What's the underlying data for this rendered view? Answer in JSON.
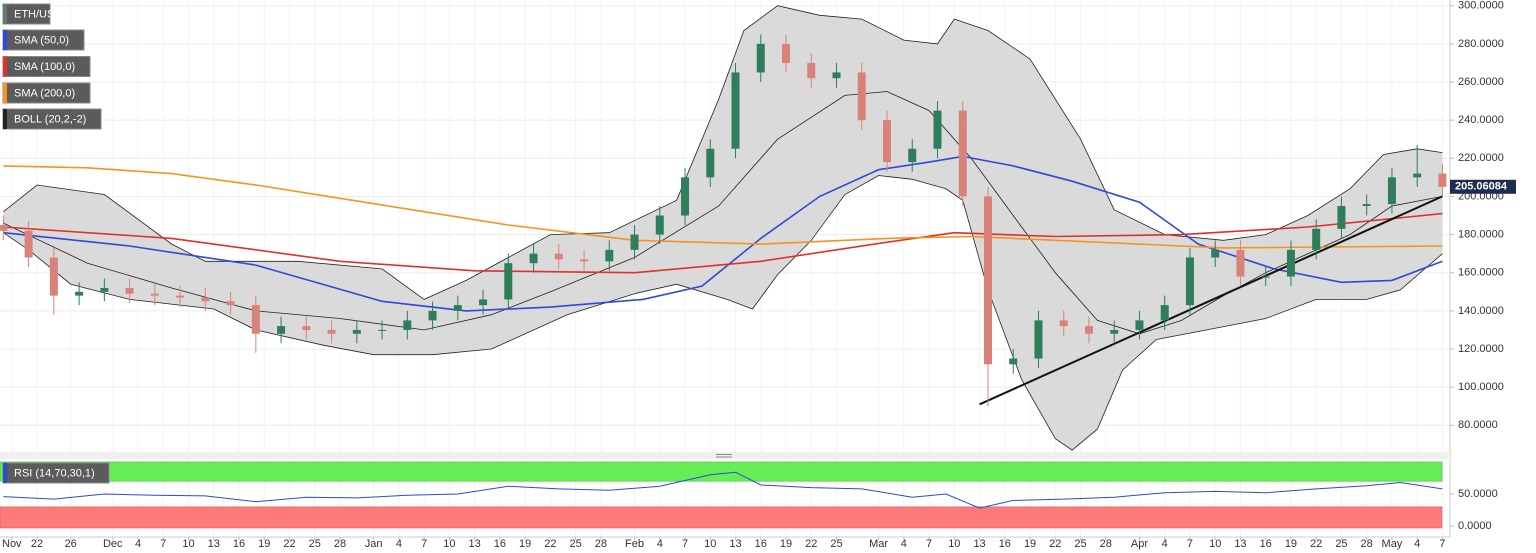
{
  "chart_data": [
    {
      "type": "candlestick",
      "name": "ETH/USD",
      "x": [
        0,
        3,
        6,
        9,
        12,
        15,
        18,
        21,
        24,
        27,
        30,
        33,
        36,
        39,
        42,
        45,
        48,
        51,
        54,
        57,
        60,
        63,
        66,
        69,
        72,
        75,
        78,
        81,
        84,
        87,
        90,
        93,
        96,
        99,
        102,
        105,
        108,
        111,
        114,
        117,
        120,
        123,
        126,
        129,
        132,
        135,
        138,
        141,
        144,
        147,
        150,
        153,
        156,
        159,
        162,
        165,
        168,
        171
      ],
      "open": [
        185,
        182,
        168,
        148,
        150,
        152,
        149,
        148,
        147,
        145,
        143,
        128,
        132,
        130,
        128,
        130,
        130,
        135,
        140,
        143,
        146,
        165,
        170,
        167,
        166,
        172,
        180,
        190,
        210,
        225,
        265,
        280,
        270,
        262,
        265,
        240,
        218,
        225,
        245,
        200,
        112,
        115,
        135,
        132,
        128,
        130,
        135,
        143,
        168,
        172,
        158,
        158,
        172,
        183,
        195,
        196,
        210,
        212
      ],
      "high": [
        190,
        187,
        173,
        155,
        157,
        157,
        154,
        153,
        152,
        150,
        148,
        137,
        137,
        135,
        135,
        135,
        140,
        145,
        148,
        151,
        170,
        175,
        175,
        172,
        177,
        185,
        195,
        215,
        230,
        270,
        285,
        285,
        275,
        270,
        270,
        245,
        230,
        250,
        250,
        205,
        120,
        140,
        140,
        137,
        135,
        140,
        148,
        173,
        177,
        177,
        163,
        177,
        188,
        200,
        201,
        215,
        227,
        217
      ],
      "low": [
        177,
        163,
        138,
        143,
        145,
        144,
        143,
        142,
        140,
        138,
        118,
        123,
        125,
        123,
        123,
        125,
        125,
        130,
        135,
        138,
        141,
        160,
        162,
        161,
        161,
        167,
        175,
        185,
        205,
        220,
        260,
        265,
        257,
        257,
        235,
        213,
        213,
        220,
        195,
        90,
        107,
        110,
        127,
        123,
        123,
        125,
        130,
        138,
        163,
        153,
        153,
        153,
        167,
        178,
        190,
        191,
        205,
        200
      ],
      "close": [
        182,
        168,
        148,
        150,
        152,
        149,
        148,
        147,
        145,
        143,
        128,
        132,
        130,
        128,
        130,
        130,
        135,
        140,
        143,
        146,
        165,
        170,
        167,
        166,
        172,
        180,
        190,
        210,
        225,
        265,
        280,
        270,
        262,
        265,
        240,
        218,
        225,
        245,
        200,
        112,
        115,
        135,
        132,
        128,
        130,
        135,
        143,
        168,
        172,
        158,
        158,
        172,
        183,
        195,
        196,
        210,
        212,
        205
      ],
      "up_color": "#2e7d5b",
      "down_color": "#d9827a",
      "color": "#5f7f6c",
      "xlim": [
        -0.4,
        171.9
      ],
      "ylim": [
        66,
        303
      ],
      "yticks": [
        {
          "value": 80,
          "label": "80.0000"
        },
        {
          "value": 100,
          "label": "100.0000"
        },
        {
          "value": 120,
          "label": "120.0000"
        },
        {
          "value": 140,
          "label": "140.0000"
        },
        {
          "value": 160,
          "label": "160.0000"
        },
        {
          "value": 180,
          "label": "180.0000"
        },
        {
          "value": 200,
          "label": "200.0000"
        },
        {
          "value": 220,
          "label": "220.0000"
        },
        {
          "value": 240,
          "label": "240.0000"
        },
        {
          "value": 260,
          "label": "260.0000"
        },
        {
          "value": 280,
          "label": "280.0000"
        },
        {
          "value": 300,
          "label": "300.0000"
        }
      ],
      "xticks": [
        {
          "value": 1,
          "label": "Nov"
        },
        {
          "value": 4,
          "label": "22"
        },
        {
          "value": 8,
          "label": "26"
        },
        {
          "value": 13,
          "label": "Dec"
        },
        {
          "value": 16,
          "label": "4"
        },
        {
          "value": 19,
          "label": "7"
        },
        {
          "value": 22,
          "label": "10"
        },
        {
          "value": 25,
          "label": "13"
        },
        {
          "value": 28,
          "label": "16"
        },
        {
          "value": 31,
          "label": "19"
        },
        {
          "value": 34,
          "label": "22"
        },
        {
          "value": 37,
          "label": "25"
        },
        {
          "value": 40,
          "label": "28"
        },
        {
          "value": 44,
          "label": "Jan"
        },
        {
          "value": 47,
          "label": "4"
        },
        {
          "value": 50,
          "label": "7"
        },
        {
          "value": 53,
          "label": "10"
        },
        {
          "value": 56,
          "label": "13"
        },
        {
          "value": 59,
          "label": "16"
        },
        {
          "value": 62,
          "label": "19"
        },
        {
          "value": 65,
          "label": "22"
        },
        {
          "value": 68,
          "label": "25"
        },
        {
          "value": 71,
          "label": "28"
        },
        {
          "value": 75,
          "label": "Feb"
        },
        {
          "value": 78,
          "label": "4"
        },
        {
          "value": 81,
          "label": "7"
        },
        {
          "value": 84,
          "label": "10"
        },
        {
          "value": 87,
          "label": "13"
        },
        {
          "value": 90,
          "label": "16"
        },
        {
          "value": 93,
          "label": "19"
        },
        {
          "value": 96,
          "label": "22"
        },
        {
          "value": 99,
          "label": "25"
        },
        {
          "value": 104,
          "label": "Mar"
        },
        {
          "value": 107,
          "label": "4"
        },
        {
          "value": 110,
          "label": "7"
        },
        {
          "value": 113,
          "label": "10"
        },
        {
          "value": 116,
          "label": "13"
        },
        {
          "value": 119,
          "label": "16"
        },
        {
          "value": 122,
          "label": "19"
        },
        {
          "value": 125,
          "label": "22"
        },
        {
          "value": 128,
          "label": "25"
        },
        {
          "value": 131,
          "label": "28"
        },
        {
          "value": 135,
          "label": "Apr"
        },
        {
          "value": 138,
          "label": "4"
        },
        {
          "value": 141,
          "label": "7"
        },
        {
          "value": 144,
          "label": "10"
        },
        {
          "value": 147,
          "label": "13"
        },
        {
          "value": 150,
          "label": "16"
        },
        {
          "value": 153,
          "label": "19"
        },
        {
          "value": 156,
          "label": "22"
        },
        {
          "value": 159,
          "label": "25"
        },
        {
          "value": 162,
          "label": "28"
        },
        {
          "value": 165,
          "label": "May"
        },
        {
          "value": 168,
          "label": "4"
        },
        {
          "value": 171,
          "label": "7"
        }
      ],
      "grid": true,
      "series": [
        {
          "name": "SMA (50,0)",
          "color": "#2f48d8",
          "x": [
            0,
            15,
            30,
            45,
            55,
            65,
            76,
            83,
            90,
            97,
            104,
            110,
            114,
            120,
            127,
            135,
            142,
            151,
            159,
            165,
            171
          ],
          "values": [
            181,
            174,
            164,
            145,
            140,
            142,
            146,
            153,
            178,
            200,
            214,
            218,
            221,
            216,
            208,
            197,
            175,
            162,
            155,
            156,
            166
          ]
        },
        {
          "name": "SMA (100,0)",
          "color": "#e0302a",
          "x": [
            0,
            20,
            40,
            56,
            75,
            90,
            105,
            113,
            125,
            140,
            155,
            171
          ],
          "values": [
            184,
            178,
            166,
            161,
            160,
            166,
            176,
            181,
            179,
            180,
            184,
            191
          ]
        },
        {
          "name": "SMA (200,0)",
          "color": "#f7931e",
          "x": [
            0,
            10,
            20,
            30,
            40,
            50,
            60,
            75,
            90,
            105,
            115,
            130,
            145,
            171
          ],
          "values": [
            216,
            215,
            212,
            206,
            199,
            192,
            185,
            177,
            175,
            178,
            179,
            176,
            173,
            174
          ]
        }
      ],
      "bollinger": {
        "name": "BOLL (20,2,-2)",
        "color": "#222222",
        "upper": {
          "x": [
            0,
            4,
            12,
            20,
            24,
            35,
            45,
            50,
            55,
            65,
            72,
            80,
            85,
            88,
            92,
            97,
            102,
            107,
            111,
            113,
            117,
            122,
            128,
            132,
            138,
            145,
            150,
            155,
            160,
            164,
            168,
            171
          ],
          "values": [
            192,
            206,
            201,
            175,
            166,
            166,
            162,
            146,
            156,
            180,
            181,
            198,
            251,
            287,
            300,
            295,
            293,
            282,
            280,
            293,
            287,
            272,
            230,
            193,
            180,
            177,
            180,
            190,
            204,
            222,
            225,
            223
          ]
        },
        "middle": {
          "x": [
            0,
            10,
            20,
            30,
            40,
            50,
            58,
            65,
            75,
            85,
            92,
            100,
            105,
            110,
            115,
            120,
            125,
            130,
            135,
            140,
            145,
            150,
            155,
            160,
            165,
            171
          ],
          "values": [
            186,
            165,
            152,
            140,
            136,
            130,
            138,
            150,
            168,
            195,
            230,
            253,
            255,
            245,
            220,
            190,
            160,
            135,
            128,
            135,
            148,
            160,
            170,
            180,
            195,
            200
          ]
        },
        "lower": {
          "x": [
            0,
            3,
            8,
            15,
            25,
            30,
            38,
            44,
            51,
            58,
            67,
            75,
            80,
            86,
            89,
            92,
            96,
            100,
            104,
            108,
            112,
            114,
            117,
            121,
            125,
            127,
            130,
            133,
            137,
            143,
            150,
            156,
            162,
            166,
            171
          ],
          "values": [
            181,
            172,
            154,
            146,
            141,
            130,
            122,
            117,
            117,
            120,
            138,
            149,
            154,
            146,
            141,
            159,
            177,
            201,
            211,
            209,
            204,
            198,
            151,
            104,
            73,
            67,
            78,
            109,
            125,
            130,
            136,
            146,
            146,
            151,
            170
          ]
        }
      },
      "trendline": {
        "color": "#111111",
        "x": [
          116,
          171
        ],
        "values": [
          91,
          200
        ]
      },
      "last_price": 205.06084,
      "last_price_color": "#1f2b50"
    },
    {
      "type": "line",
      "name": "RSI (14,70,30,1)",
      "color": "#2f48d8",
      "x": [
        0,
        6,
        12,
        18,
        24,
        30,
        36,
        42,
        48,
        54,
        60,
        66,
        72,
        78,
        84,
        87,
        90,
        96,
        102,
        108,
        112,
        116,
        120,
        126,
        132,
        138,
        144,
        150,
        156,
        162,
        166,
        171
      ],
      "values": [
        46,
        42,
        50,
        48,
        47,
        38,
        45,
        44,
        48,
        50,
        62,
        58,
        56,
        62,
        80,
        84,
        64,
        60,
        58,
        45,
        50,
        28,
        40,
        42,
        45,
        52,
        54,
        52,
        58,
        63,
        68,
        58
      ],
      "ylim": [
        -17,
        103
      ],
      "yticks": [
        {
          "value": 0,
          "label": "0.0000"
        },
        {
          "value": 50,
          "label": "50.0000"
        }
      ],
      "overbought": 70,
      "oversold": 30,
      "overbought_color": "#66ee55",
      "oversold_color": "#ff7b7b"
    }
  ]
}
